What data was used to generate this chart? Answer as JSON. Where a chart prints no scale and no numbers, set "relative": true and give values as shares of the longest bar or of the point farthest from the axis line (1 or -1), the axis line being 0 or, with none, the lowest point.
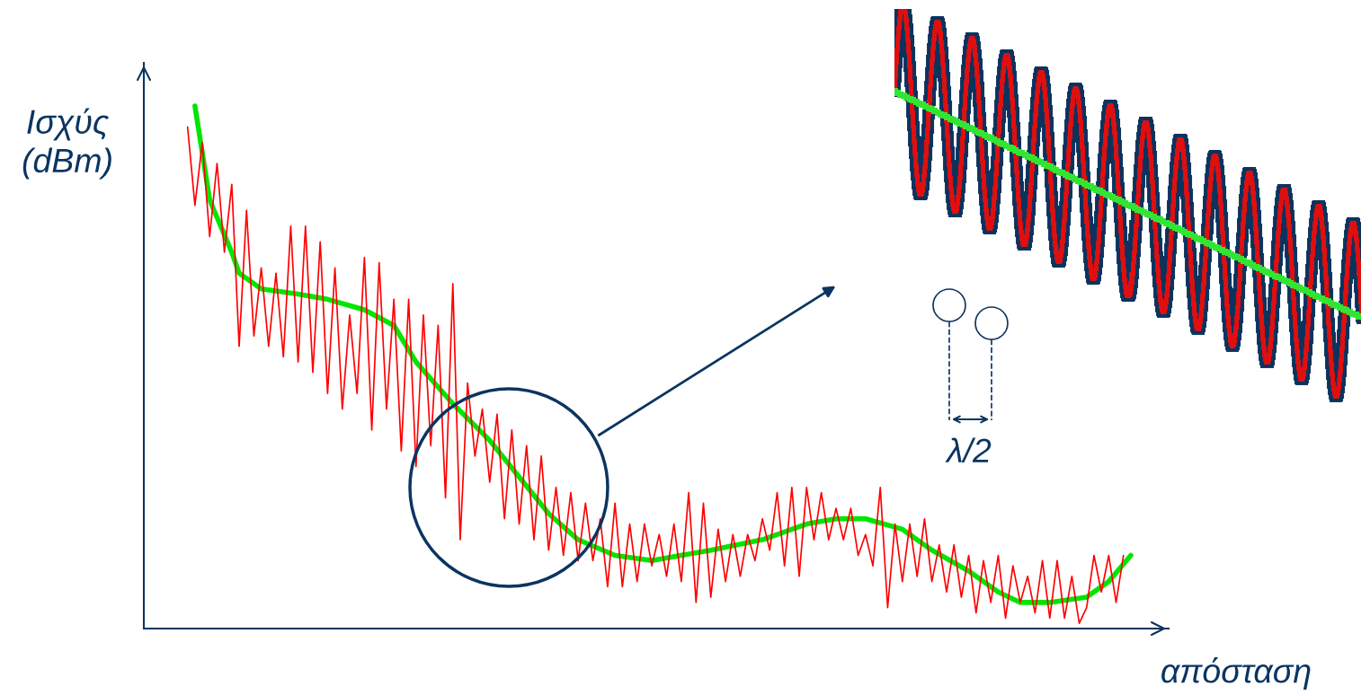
{
  "chart_data": {
    "type": "line",
    "relative": true,
    "ylabel": "Ισχύς\n(dBm)",
    "xlabel": "απόσταση",
    "annotations": [
      "λ/2"
    ],
    "categories": [
      null,
      null,
      null,
      null,
      null,
      null,
      null,
      null,
      null,
      null,
      null,
      null,
      null,
      null,
      null,
      null,
      null,
      null,
      null,
      null,
      null,
      null,
      null,
      null,
      null,
      null,
      null,
      null,
      null,
      null,
      null,
      null,
      null,
      null,
      null,
      null,
      null,
      null,
      null,
      null,
      null,
      null,
      null,
      null,
      null,
      null,
      null,
      null,
      null,
      null,
      null,
      null,
      null,
      null,
      null,
      null,
      null,
      null,
      null,
      null,
      null,
      null,
      null,
      null,
      null,
      null,
      null,
      null,
      null,
      null,
      null,
      null,
      null,
      null,
      null,
      null,
      null,
      null,
      null,
      null,
      null,
      null,
      null,
      null,
      null,
      null,
      null,
      null,
      null,
      null,
      null,
      null,
      null,
      null,
      null,
      null,
      null,
      null,
      null,
      null,
      null,
      null,
      null,
      null,
      null,
      null,
      null,
      null,
      null,
      null,
      null,
      null,
      null,
      null,
      null,
      null,
      null,
      null,
      null,
      null,
      null,
      null,
      null,
      null,
      null,
      null,
      null,
      null,
      null
    ],
    "series": [
      {
        "color": "#ff0000",
        "values": [
          0.96,
          0.81,
          0.93,
          0.75,
          0.89,
          0.72,
          0.85,
          0.54,
          0.8,
          0.56,
          0.69,
          0.54,
          0.68,
          0.52,
          0.77,
          0.51,
          0.77,
          0.49,
          0.74,
          0.45,
          0.69,
          0.42,
          0.6,
          0.45,
          0.71,
          0.38,
          0.7,
          0.42,
          0.63,
          0.34,
          0.63,
          0.31,
          0.6,
          0.35,
          0.58,
          0.25,
          0.66,
          0.17,
          0.47,
          0.33,
          0.42,
          0.28,
          0.41,
          0.21,
          0.38,
          0.2,
          0.35,
          0.17,
          0.33,
          0.15,
          0.27,
          0.14,
          0.26,
          0.13,
          0.24,
          0.13,
          0.21,
          0.08,
          0.24,
          0.08,
          0.2,
          0.09,
          0.2,
          0.12,
          0.18,
          0.1,
          0.2,
          0.09,
          0.26,
          0.05,
          0.24,
          0.06,
          0.19,
          0.09,
          0.18,
          0.1,
          0.18,
          0.13,
          0.21,
          0.15,
          0.26,
          0.12,
          0.27,
          0.1,
          0.27,
          0.17,
          0.26,
          0.17,
          0.23,
          0.17,
          0.23,
          0.14,
          0.18,
          0.12,
          0.27,
          0.04,
          0.2,
          0.09,
          0.2,
          0.1,
          0.21,
          0.09,
          0.16,
          0.07,
          0.16,
          0.06,
          0.14,
          0.03,
          0.13,
          0.05,
          0.14,
          0.02,
          0.12,
          0.05,
          0.1,
          0.03,
          0.13,
          0.02,
          0.13,
          0.02,
          0.1,
          0.01,
          0.04,
          0.14,
          0.07,
          0.14,
          0.05,
          0.14,
          null
        ]
      },
      {
        "color": "#00e600",
        "values": [
          null,
          1.0,
          null,
          0.82,
          null,
          null,
          0.72,
          0.68,
          null,
          null,
          0.65,
          null,
          null,
          null,
          null,
          0.64,
          null,
          null,
          null,
          0.63,
          null,
          null,
          null,
          null,
          0.61,
          null,
          null,
          null,
          0.58,
          null,
          null,
          0.51,
          null,
          null,
          null,
          null,
          0.43,
          null,
          null,
          null,
          null,
          0.36,
          null,
          null,
          null,
          0.29,
          null,
          null,
          null,
          0.22,
          null,
          null,
          null,
          0.17,
          null,
          null,
          null,
          null,
          0.14,
          null,
          null,
          null,
          null,
          0.13,
          null,
          null,
          null,
          null,
          null,
          null,
          null,
          0.15,
          null,
          null,
          null,
          null,
          null,
          null,
          0.17,
          null,
          null,
          null,
          null,
          null,
          0.2,
          null,
          null,
          null,
          0.21,
          null,
          null,
          null,
          0.21,
          null,
          null,
          null,
          null,
          0.19,
          null,
          null,
          null,
          0.15,
          null,
          null,
          null,
          null,
          0.11,
          null,
          null,
          null,
          0.07,
          null,
          null,
          0.05,
          null,
          null,
          null,
          0.05,
          null,
          null,
          null,
          null,
          0.06,
          null,
          null,
          0.09,
          null,
          null,
          0.14
        ]
      }
    ]
  }
}
